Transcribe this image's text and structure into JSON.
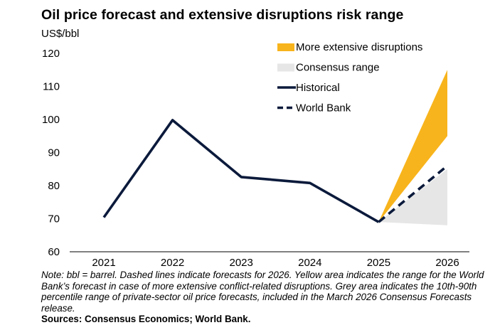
{
  "title": "Oil price forecast and extensive disruptions risk range",
  "unit_label": "US$/bbl",
  "note": "Note: bbl = barrel. Dashed lines indicate forecasts for 2026. Yellow area indicates the range for the World Bank’s forecast in case of more extensive  conflict-related disruptions. Grey area indicates the 10th-90th percentile range of private-sector oil price forecasts, included in the March 2026 Consensus Forecasts release.",
  "sources": "Sources: Consensus Economics; World Bank.",
  "colors": {
    "historical": "#0b1a3b",
    "world_bank": "#0b1a3b",
    "disruptions": "#f8b41c",
    "consensus": "#e6e6e6"
  },
  "chart_data": {
    "type": "line",
    "x": [
      "2021",
      "2022",
      "2023",
      "2024",
      "2025",
      "2026"
    ],
    "ylim": [
      60,
      120
    ],
    "yticks": [
      "60",
      "70",
      "80",
      "90",
      "100",
      "110",
      "120"
    ],
    "grid": false,
    "legend_position": "top-right",
    "series": [
      {
        "name": "Historical",
        "style": "solid",
        "x": [
          "2021",
          "2022",
          "2023",
          "2024",
          "2025"
        ],
        "values": [
          70.4,
          99.8,
          82.6,
          80.8,
          69.0
        ]
      },
      {
        "name": "World Bank",
        "style": "dashed",
        "x": [
          "2025",
          "2026"
        ],
        "values": [
          69.0,
          86.0
        ]
      }
    ],
    "areas": [
      {
        "name": "More extensive disruptions",
        "x": [
          "2025",
          "2026"
        ],
        "lower": [
          69.0,
          95.0
        ],
        "upper": [
          69.0,
          115.0
        ]
      },
      {
        "name": "Consensus range",
        "x": [
          "2025",
          "2026"
        ],
        "lower": [
          69.0,
          68.0
        ],
        "upper": [
          69.0,
          85.0
        ]
      }
    ],
    "legend": [
      {
        "label": "More extensive disruptions",
        "symbol": "area-yellow"
      },
      {
        "label": "Consensus range",
        "symbol": "area-grey"
      },
      {
        "label": "Historical",
        "symbol": "line-solid"
      },
      {
        "label": "World Bank",
        "symbol": "line-dashed"
      }
    ]
  }
}
